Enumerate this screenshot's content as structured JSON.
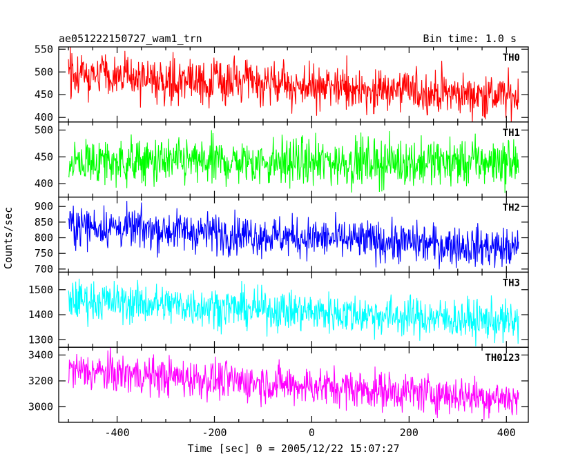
{
  "chart_data": {
    "type": "line",
    "title": "ae051222150727_wam1_trn",
    "bin_label": "Bin time: 1.0 s",
    "xlabel": "Time [sec] 0 = 2005/12/22 15:07:27",
    "ylabel": "Counts/sec",
    "xlim": [
      -520,
      445
    ],
    "x_range": [
      -500,
      425
    ],
    "x_ticks": [
      "-400",
      "-200",
      "0",
      "200",
      "400"
    ],
    "grid": false,
    "panels": [
      {
        "name": "TH0",
        "color": "#ff0000",
        "ylim": [
          390,
          555
        ],
        "y_ticks": [
          "400",
          "450",
          "500",
          "550"
        ],
        "trend": [
          495,
          445
        ],
        "noise": 24
      },
      {
        "name": "TH1",
        "color": "#00ff00",
        "ylim": [
          375,
          515
        ],
        "y_ticks": [
          "400",
          "450",
          "500"
        ],
        "trend": [
          440,
          440
        ],
        "noise": 22
      },
      {
        "name": "TH2",
        "color": "#0000ff",
        "ylim": [
          690,
          930
        ],
        "y_ticks": [
          "700",
          "750",
          "800",
          "850",
          "900"
        ],
        "trend": [
          840,
          765
        ],
        "noise": 32
      },
      {
        "name": "TH3",
        "color": "#00ffff",
        "ylim": [
          1270,
          1570
        ],
        "y_ticks": [
          "1300",
          "1400",
          "1500"
        ],
        "trend": [
          1460,
          1370
        ],
        "noise": 40
      },
      {
        "name": "TH0123",
        "color": "#ff00ff",
        "ylim": [
          2880,
          3460
        ],
        "y_ticks": [
          "3000",
          "3200",
          "3400"
        ],
        "trend": [
          3280,
          3060
        ],
        "noise": 75
      }
    ]
  }
}
